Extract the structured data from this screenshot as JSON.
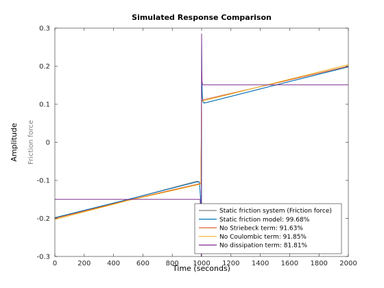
{
  "chart_data": {
    "type": "line",
    "title": "Simulated Response Comparison",
    "xlabel": "Time (seconds)",
    "ylabel": "Amplitude",
    "channel_label": "Friction force",
    "xlim": [
      0,
      2000
    ],
    "ylim": [
      -0.3,
      0.3
    ],
    "xticks": [
      0,
      200,
      400,
      600,
      800,
      1000,
      1200,
      1400,
      1600,
      1800,
      2000
    ],
    "yticks": [
      -0.3,
      -0.2,
      -0.1,
      0,
      0.1,
      0.2,
      0.3
    ],
    "ytick_labels": [
      "-0.3",
      "-0.2",
      "-0.1",
      "0",
      "0.1",
      "0.2",
      "0.3"
    ],
    "grid": false,
    "legend_position": "bottom-right",
    "series": [
      {
        "name": "Static friction system (Friction force)",
        "color": "#808080",
        "x": [
          0,
          500,
          970,
          985,
          995,
          999,
          1000,
          1001,
          1004,
          1008,
          1015,
          1030,
          1500,
          2000
        ],
        "y": [
          -0.199,
          -0.15,
          -0.102,
          -0.104,
          -0.16,
          -0.25,
          0.28,
          0.19,
          0.13,
          0.108,
          0.104,
          0.104,
          0.15,
          0.199
        ]
      },
      {
        "name": "Static friction model: 99.68%",
        "color": "#0072BD",
        "x": [
          0,
          500,
          970,
          985,
          995,
          999,
          1000,
          1001,
          1004,
          1008,
          1015,
          1030,
          1500,
          2000
        ],
        "y": [
          -0.198,
          -0.15,
          -0.104,
          -0.105,
          -0.16,
          -0.25,
          0.27,
          0.185,
          0.13,
          0.107,
          0.103,
          0.104,
          0.15,
          0.198
        ]
      },
      {
        "name": "No Striebeck term: 91.63%",
        "color": "#D95319",
        "x": [
          0,
          500,
          995,
          1000,
          1005,
          1500,
          2000
        ],
        "y": [
          -0.2,
          -0.152,
          -0.108,
          0.11,
          0.111,
          0.155,
          0.2
        ]
      },
      {
        "name": "No Coulombic term: 91.85%",
        "color": "#EDB120",
        "x": [
          0,
          500,
          995,
          1000,
          1005,
          1500,
          2000
        ],
        "y": [
          -0.203,
          -0.153,
          -0.11,
          0.108,
          0.108,
          0.156,
          0.204
        ]
      },
      {
        "name": "No dissipation term: 81.81%",
        "color": "#7E2F8E",
        "x": [
          0,
          990,
          993,
          998,
          1000,
          1001,
          1003,
          1006,
          1010,
          2000
        ],
        "y": [
          -0.15,
          -0.15,
          -0.19,
          -0.3,
          0.285,
          0.19,
          0.16,
          0.152,
          0.151,
          0.151
        ]
      }
    ]
  }
}
